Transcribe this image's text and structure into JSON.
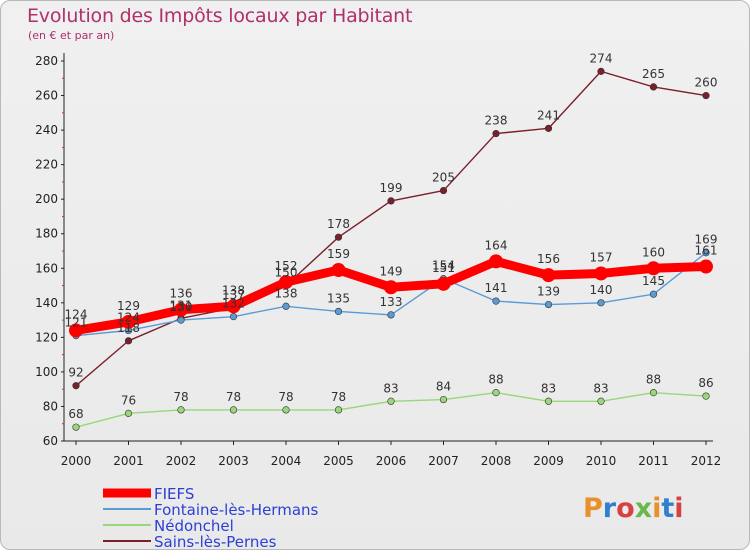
{
  "title": "Evolution des Impôts locaux par Habitant",
  "subtitle": "(en € et par an)",
  "logo": "Proxiti",
  "chart_data": {
    "type": "line",
    "x": [
      "2000",
      "2001",
      "2002",
      "2003",
      "2004",
      "2005",
      "2006",
      "2007",
      "2008",
      "2009",
      "2010",
      "2011",
      "2012"
    ],
    "ylim": [
      60,
      280
    ],
    "yticks": [
      60,
      80,
      100,
      120,
      140,
      160,
      180,
      200,
      220,
      240,
      260,
      280
    ],
    "grid": false,
    "legend_position": "bottom-left",
    "series": [
      {
        "name": "FIEFS",
        "color": "#ff0000",
        "values": [
          124,
          129,
          136,
          138,
          152,
          159,
          149,
          151,
          164,
          156,
          157,
          160,
          161
        ]
      },
      {
        "name": "Fontaine-lès-Hermans",
        "color": "#5b9bd5",
        "values": [
          121,
          124,
          130,
          132,
          138,
          135,
          133,
          154,
          141,
          139,
          140,
          145,
          169
        ]
      },
      {
        "name": "Nédonchel",
        "color": "#99d77a",
        "values": [
          68,
          76,
          78,
          78,
          78,
          78,
          83,
          84,
          88,
          83,
          83,
          88,
          86
        ]
      },
      {
        "name": "Sains-lès-Pernes",
        "color": "#7a1f2b",
        "values": [
          92,
          118,
          131,
          137,
          150,
          178,
          199,
          205,
          238,
          241,
          274,
          265,
          260
        ]
      }
    ]
  }
}
